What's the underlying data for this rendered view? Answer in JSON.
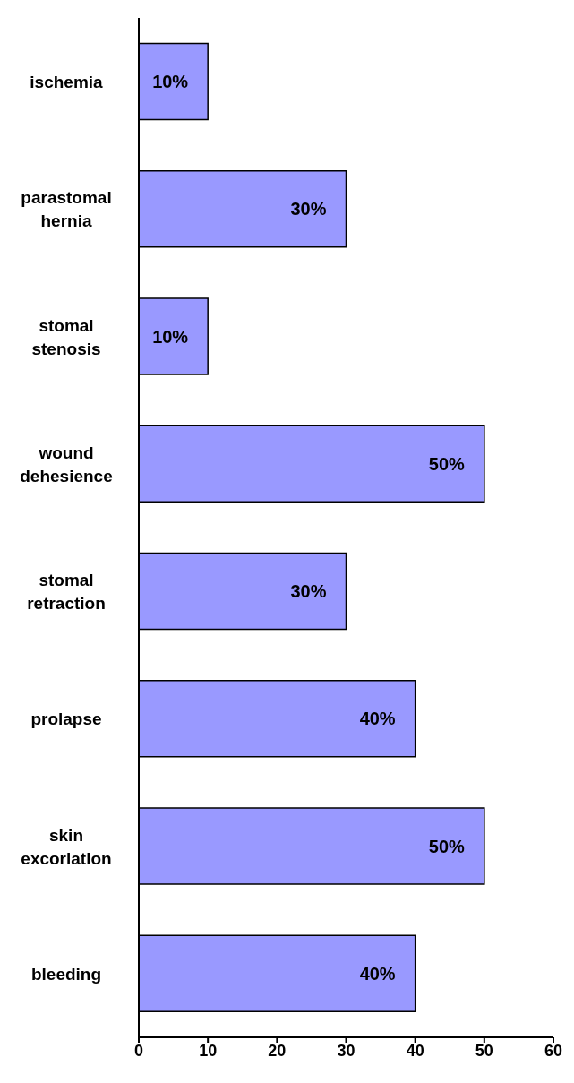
{
  "chart_data": {
    "type": "bar",
    "orientation": "horizontal",
    "categories": [
      "ischemia",
      "parastomal hernia",
      "stomal stenosis",
      "wound dehesience",
      "stomal retraction",
      "prolapse",
      "skin excoriation",
      "bleeding"
    ],
    "values": [
      10,
      30,
      10,
      50,
      30,
      40,
      50,
      40
    ],
    "value_labels": [
      "10%",
      "30%",
      "10%",
      "50%",
      "30%",
      "40%",
      "50%",
      "40%"
    ],
    "color": "#9999ff",
    "xlim": [
      0,
      60
    ],
    "xticks": [
      0,
      10,
      20,
      30,
      40,
      50,
      60
    ],
    "grid": false,
    "legend": false
  }
}
